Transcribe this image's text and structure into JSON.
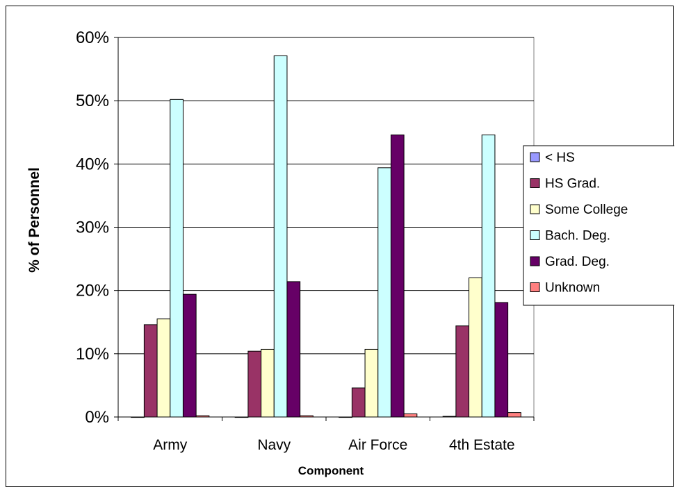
{
  "chart_data": {
    "type": "bar",
    "categories": [
      "Army",
      "Navy",
      "Air Force",
      "4th Estate"
    ],
    "series": [
      {
        "name": "< HS",
        "color": "#9999ff",
        "values": [
          0,
          0,
          0,
          0.1
        ]
      },
      {
        "name": "HS Grad.",
        "color": "#993366",
        "values": [
          14.6,
          10.4,
          4.6,
          14.4
        ]
      },
      {
        "name": "Some College",
        "color": "#ffffcc",
        "values": [
          15.5,
          10.7,
          10.7,
          22.0
        ]
      },
      {
        "name": "Bach. Deg.",
        "color": "#ccffff",
        "values": [
          50.2,
          57.1,
          39.4,
          44.6
        ]
      },
      {
        "name": "Grad. Deg.",
        "color": "#660066",
        "values": [
          19.4,
          21.4,
          44.6,
          18.1
        ]
      },
      {
        "name": "Unknown",
        "color": "#ff8080",
        "values": [
          0.2,
          0.2,
          0.5,
          0.7
        ]
      }
    ],
    "xlabel": "Component",
    "ylabel": "% of Personnel",
    "ylim": [
      0,
      60
    ],
    "yticks": [
      "0%",
      "10%",
      "20%",
      "30%",
      "40%",
      "50%",
      "60%"
    ],
    "grid": true,
    "legend_position": "right"
  }
}
